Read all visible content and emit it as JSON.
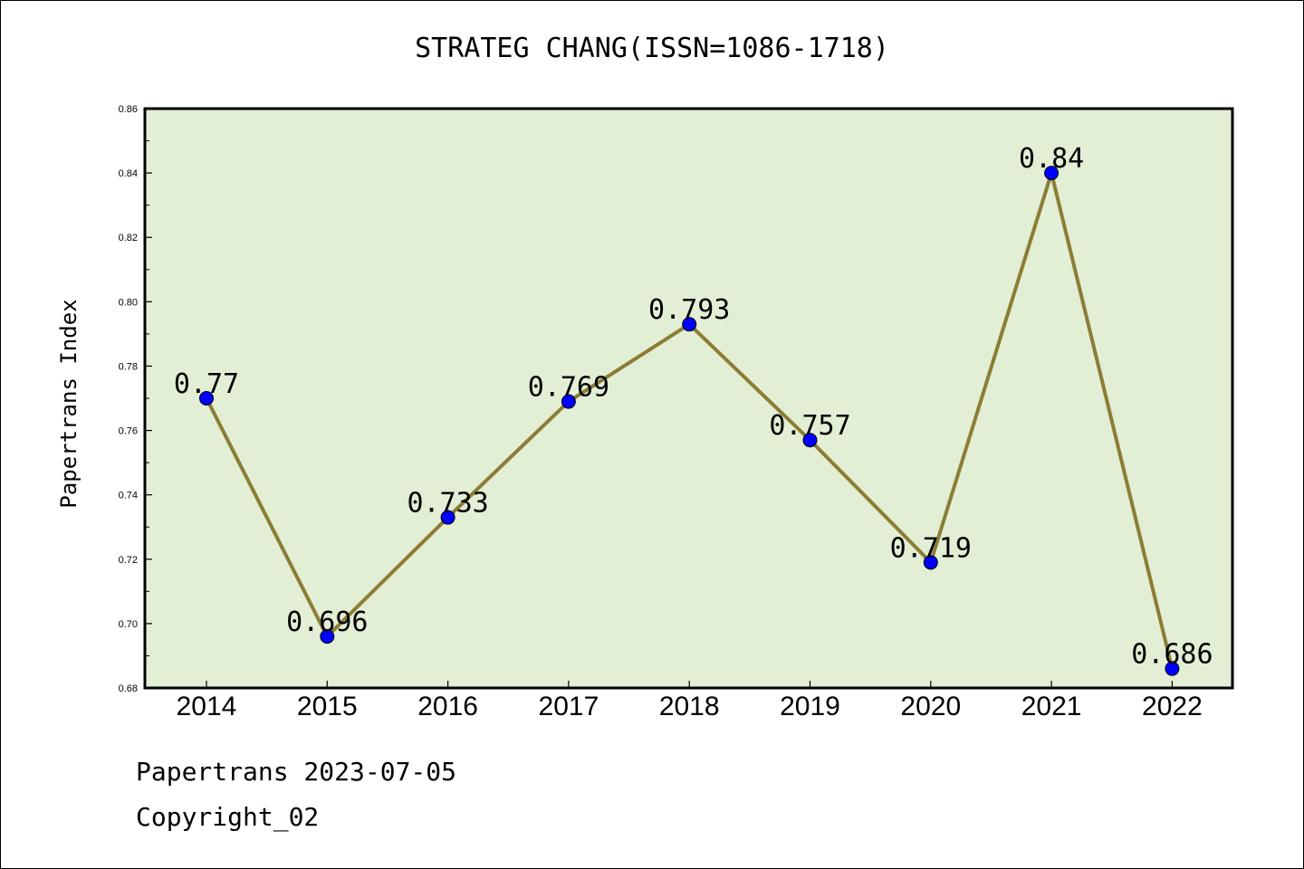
{
  "chart_data": {
    "type": "line",
    "title": "STRATEG CHANG(ISSN=1086-1718)",
    "ylabel": "Papertrans Index",
    "xlabel": "",
    "categories": [
      "2014",
      "2015",
      "2016",
      "2017",
      "2018",
      "2019",
      "2020",
      "2021",
      "2022"
    ],
    "series": [
      {
        "values": [
          0.77,
          0.696,
          0.733,
          0.769,
          0.793,
          0.757,
          0.719,
          0.84,
          0.686
        ],
        "labels": [
          "0.77",
          "0.696",
          "0.733",
          "0.769",
          "0.793",
          "0.757",
          "0.719",
          "0.84",
          "0.686"
        ]
      }
    ],
    "ylim": [
      0.68,
      0.86
    ],
    "yticks": [
      "0.68",
      "0.70",
      "0.72",
      "0.74",
      "0.76",
      "0.78",
      "0.80",
      "0.82",
      "0.84",
      "0.86"
    ],
    "grid": false,
    "line_color": "#8b7d35",
    "marker_color": "#0000ff",
    "plot_background": "#e2efd5"
  },
  "footer": {
    "date_text": "Papertrans 2023-07-05",
    "copyright_text": "Copyright_02"
  }
}
